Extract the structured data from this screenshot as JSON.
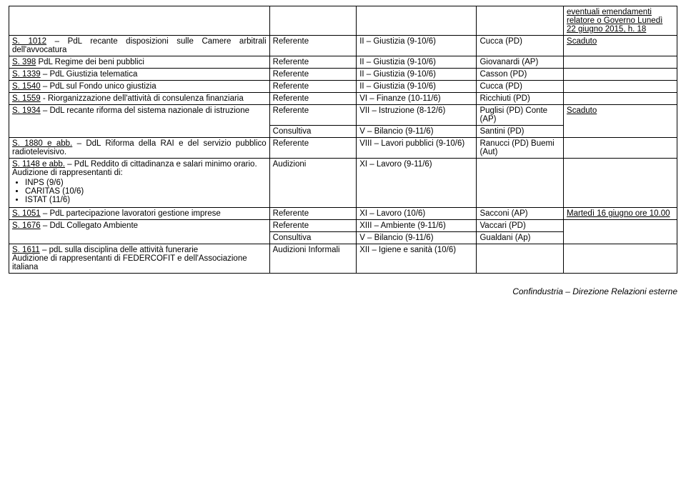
{
  "colors": {
    "text": "#000000",
    "background": "#ffffff",
    "border": "#000000"
  },
  "table": {
    "column_widths_pct": [
      39,
      13,
      18,
      13,
      17
    ],
    "s0": {
      "status": "eventuali emendamenti relatore o Governo Lunedì 22 giugno 2015, h. 18"
    },
    "s1012": {
      "num": "S. 1012",
      "desc": " – PdL recante disposizioni sulle Camere arbitrali dell'avvocatura",
      "role": "Referente",
      "comm": "II – Giustizia (9-10/6)",
      "rel": "Cucca (PD)",
      "status": "Scaduto"
    },
    "s398": {
      "num": "S. 398",
      "desc": " PdL Regime dei beni pubblici",
      "role": "Referente",
      "comm": "II – Giustizia (9-10/6)",
      "rel": "Giovanardi (AP)"
    },
    "s1339": {
      "num": "S. 1339",
      "desc": " – PdL Giustizia telematica",
      "role": "Referente",
      "comm": "II – Giustizia (9-10/6)",
      "rel": "Casson (PD)"
    },
    "s1540": {
      "num": "S. 1540",
      "desc": " – PdL sul Fondo unico giustizia",
      "role": "Referente",
      "comm": "II – Giustizia (9-10/6)",
      "rel": "Cucca (PD)"
    },
    "s1559": {
      "num": "S. 1559",
      "desc": " - Riorganizzazione dell'attività di consulenza finanziaria",
      "role": "Referente",
      "comm": "VI – Finanze (10-11/6)",
      "rel": "Ricchiuti (PD)"
    },
    "s1934": {
      "num": "S. 1934",
      "desc": " – DdL recante riforma del sistema nazionale di istruzione",
      "role": "Referente",
      "comm": "VII – Istruzione (8-12/6)",
      "rel": "Puglisi (PD) Conte (AP)",
      "status": "Scaduto",
      "row2_role": "Consultiva",
      "row2_comm": "V – Bilancio (9-11/6)",
      "row2_rel": "Santini (PD)"
    },
    "s1880": {
      "num": "S. 1880 e abb.",
      "desc": " – DdL Riforma della RAI e del servizio pubblico radiotelevisivo.",
      "role": "Referente",
      "comm": "VIII – Lavori pubblici (9-10/6)",
      "rel": "Ranucci (PD) Buemi (Aut)"
    },
    "s1148": {
      "num": "S. 1148 e abb.",
      "desc_after": " – PdL Reddito di cittadinanza e salari minimo orario.",
      "aud_intro": "Audizione di rappresentanti di:",
      "bullets": [
        "INPS (9/6)",
        "CARITAS (10/6)",
        "ISTAT (11/6)"
      ],
      "role": "Audizioni",
      "comm": "XI – Lavoro (9-11/6)"
    },
    "s1051": {
      "num": "S. 1051",
      "desc": " – PdL partecipazione lavoratori gestione imprese",
      "role": "Referente",
      "comm": "XI – Lavoro (10/6)",
      "rel": "Sacconi (AP)",
      "status": "Martedì 16 giugno ore 10.00"
    },
    "s1676": {
      "num": "S. 1676",
      "desc": " – DdL Collegato Ambiente",
      "role": "Referente",
      "comm": "XIII – Ambiente (9-11/6)",
      "rel": "Vaccari (PD)",
      "row2_role": "Consultiva",
      "row2_comm": "V – Bilancio (9-11/6)",
      "row2_rel": "Gualdani (Ap)"
    },
    "s1611": {
      "num": "S. 1611",
      "desc": " – pdL sulla disciplina delle attività funerarie",
      "aud": "Audizione di rappresentanti di FEDERCOFIT e dell'Associazione italiana",
      "role": "Audizioni Informali",
      "comm": "XII – Igiene e sanità (10/6)"
    }
  },
  "footer": "Confindustria – Direzione Relazioni esterne"
}
